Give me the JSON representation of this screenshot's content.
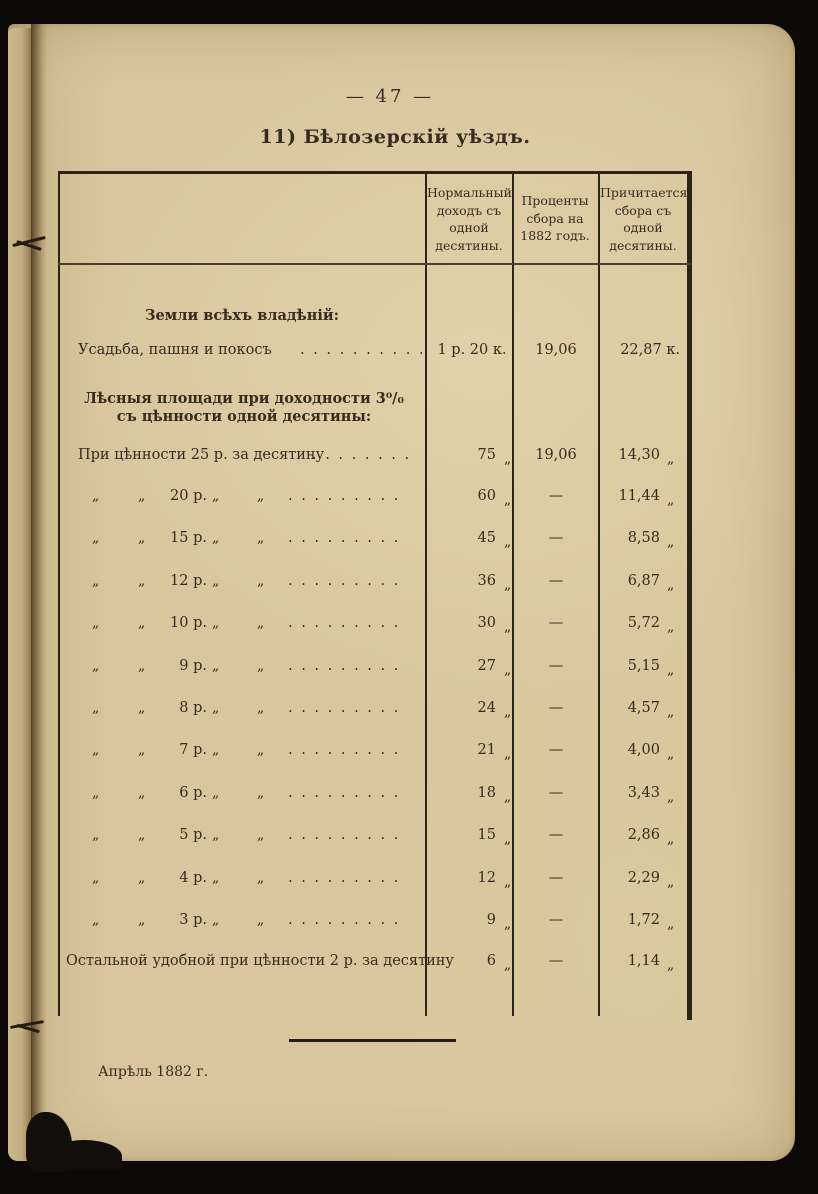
{
  "page": {
    "page_number": "— 47 —",
    "title": "11) Бѣлозерскій уѣздъ.",
    "footer_date": "Апрѣль 1882 г."
  },
  "table": {
    "col_headers": [
      "Нормальный доходъ съ одной десятины.",
      "Проценты сбора на 1882 годъ.",
      "Причитается сбора съ одной десятины."
    ],
    "section_all_lands": "Земли всѣхъ владѣній:",
    "section_forest": "Лѣсныя площади при доходности 3⁰/₀ съ цѣнности одной десятины:",
    "ditto_mark": "„",
    "row_homestead": {
      "label": "Усадьба, пашня и покосъ",
      "dots": ". . . . . . . . . . . .",
      "income": "1 р. 20 к.",
      "percent": "19,06",
      "due": "22,87 к."
    },
    "row_value25": {
      "label": "При цѣнности 25 р. за десятину",
      "dots": ". . . . . . . .",
      "income": "75",
      "percent": "19,06",
      "due": "14,30"
    },
    "ditto_dots": ". . . . . . . . .",
    "ditto_rows": [
      {
        "price": "20 р.",
        "income": "60",
        "percent": "—",
        "due": "11,44"
      },
      {
        "price": "15 р.",
        "income": "45",
        "percent": "—",
        "due": "8,58"
      },
      {
        "price": "12 р.",
        "income": "36",
        "percent": "—",
        "due": "6,87"
      },
      {
        "price": "10 р.",
        "income": "30",
        "percent": "—",
        "due": "5,72"
      },
      {
        "price": "9 р.",
        "income": "27",
        "percent": "—",
        "due": "5,15"
      },
      {
        "price": "8 р.",
        "income": "24",
        "percent": "—",
        "due": "4,57"
      },
      {
        "price": "7 р.",
        "income": "21",
        "percent": "—",
        "due": "4,00"
      },
      {
        "price": "6 р.",
        "income": "18",
        "percent": "—",
        "due": "3,43"
      },
      {
        "price": "5 р.",
        "income": "15",
        "percent": "—",
        "due": "2,86"
      },
      {
        "price": "4 р.",
        "income": "12",
        "percent": "—",
        "due": "2,29"
      },
      {
        "price": "3 р.",
        "income": "9",
        "percent": "—",
        "due": "1,72"
      }
    ],
    "row_remaining": {
      "label": "Остальной удобной при цѣнности 2 р. за десятину",
      "dots": ".",
      "income": "6",
      "percent": "—",
      "due": "1,14"
    }
  },
  "colors": {
    "paper": "#d8c59c",
    "ink": "#352c1e",
    "background": "#0b0a08"
  }
}
